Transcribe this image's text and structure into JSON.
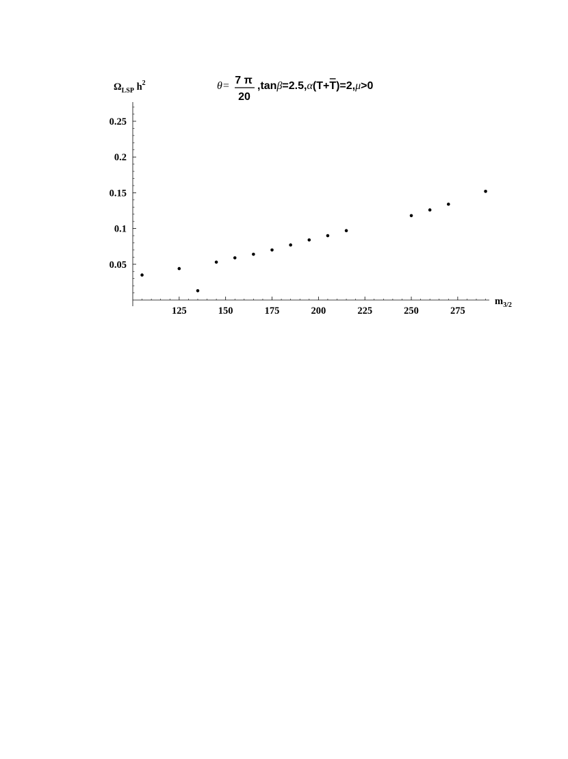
{
  "chart_data": {
    "type": "scatter",
    "title": {
      "theta_lhs": "θ=",
      "frac_num": "7 π",
      "frac_den": "20",
      "comma1": ",",
      "tan_word": "tan",
      "beta": "β",
      "tan_value": "=2.5,",
      "alpha": "α",
      "paren_open": "(T+",
      "tbar": "T",
      "paren_close": ")=2,",
      "mu": "μ",
      "mu_rest": ">0"
    },
    "ylabel": {
      "omega": "Ω",
      "sub": "LSP",
      "h": " h",
      "sup": "2"
    },
    "xlabel": {
      "m": "m",
      "sub": "3/2"
    },
    "xlim": [
      100,
      292
    ],
    "ylim": [
      0,
      0.28
    ],
    "xticks": [
      125,
      150,
      175,
      200,
      225,
      250,
      275
    ],
    "yticks": [
      0.05,
      0.1,
      0.15,
      0.2,
      0.25
    ],
    "ytick_labels": [
      "0.05",
      "0.1",
      "0.15",
      "0.2",
      "0.25"
    ],
    "xtick_labels": [
      "125",
      "150",
      "175",
      "200",
      "225",
      "250",
      "275"
    ],
    "x": [
      105,
      125,
      135,
      145,
      155,
      165,
      175,
      185,
      195,
      205,
      215,
      250,
      260,
      270,
      290
    ],
    "y": [
      0.035,
      0.044,
      0.013,
      0.053,
      0.059,
      0.064,
      0.07,
      0.077,
      0.084,
      0.09,
      0.097,
      0.118,
      0.126,
      0.134,
      0.152
    ],
    "grid": false,
    "legend": "none"
  }
}
